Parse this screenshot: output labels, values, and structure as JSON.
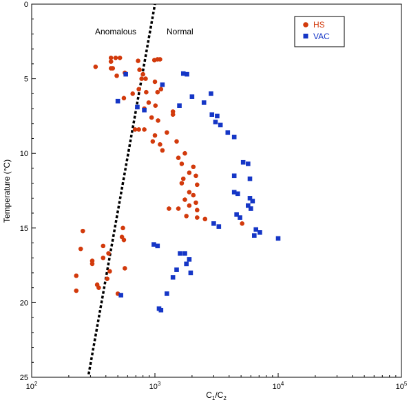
{
  "chart_data": {
    "type": "scatter",
    "title": "",
    "xlabel": "C1/C2",
    "xlabel_main": "C",
    "xlabel_sub1": "1",
    "xlabel_mid": "/C",
    "xlabel_sub2": "2",
    "ylabel": "Temperature (°C)",
    "x_scale": "log",
    "xlim": [
      100,
      100000
    ],
    "ylim": [
      0,
      25
    ],
    "y_inverted": true,
    "x_tick_base": "10",
    "x_ticks": [
      {
        "value": 100,
        "exp": "2"
      },
      {
        "value": 1000,
        "exp": "3"
      },
      {
        "value": 10000,
        "exp": "4"
      },
      {
        "value": 100000,
        "exp": "5"
      }
    ],
    "y_ticks": [
      "0",
      "5",
      "10",
      "15",
      "20",
      "25"
    ],
    "grid": false,
    "legend_position": "top-right",
    "annotations": [
      "Anomalous",
      "Normal"
    ],
    "trend_line": {
      "style": "dotted",
      "color": "#000000",
      "points": [
        [
          290,
          24.8
        ],
        [
          1000,
          0
        ]
      ]
    },
    "series": [
      {
        "name": "HS",
        "color": "#d23a0c",
        "marker": "circle",
        "points": [
          [
            330,
            4.2
          ],
          [
            440,
            3.6
          ],
          [
            440,
            3.85
          ],
          [
            480,
            3.6
          ],
          [
            520,
            3.6
          ],
          [
            440,
            4.3
          ],
          [
            455,
            4.3
          ],
          [
            490,
            4.8
          ],
          [
            570,
            4.6
          ],
          [
            730,
            3.8
          ],
          [
            750,
            4.4
          ],
          [
            800,
            4.7
          ],
          [
            990,
            3.75
          ],
          [
            1050,
            3.7
          ],
          [
            1100,
            3.7
          ],
          [
            780,
            5.0
          ],
          [
            840,
            5.0
          ],
          [
            1000,
            5.2
          ],
          [
            660,
            6.0
          ],
          [
            560,
            6.3
          ],
          [
            740,
            5.7
          ],
          [
            850,
            5.9
          ],
          [
            1050,
            5.9
          ],
          [
            1120,
            5.7
          ],
          [
            890,
            6.6
          ],
          [
            1010,
            6.8
          ],
          [
            820,
            7.0
          ],
          [
            1400,
            7.2
          ],
          [
            1400,
            7.4
          ],
          [
            940,
            7.6
          ],
          [
            1060,
            7.8
          ],
          [
            690,
            8.4
          ],
          [
            740,
            8.4
          ],
          [
            820,
            8.4
          ],
          [
            1250,
            8.6
          ],
          [
            1000,
            8.8
          ],
          [
            960,
            9.2
          ],
          [
            1500,
            9.2
          ],
          [
            1100,
            9.4
          ],
          [
            1150,
            9.8
          ],
          [
            1750,
            10.0
          ],
          [
            1550,
            10.3
          ],
          [
            1650,
            10.7
          ],
          [
            2050,
            10.9
          ],
          [
            1900,
            11.3
          ],
          [
            2150,
            11.5
          ],
          [
            1700,
            11.7
          ],
          [
            1650,
            12.0
          ],
          [
            2200,
            12.1
          ],
          [
            1900,
            12.6
          ],
          [
            2050,
            12.8
          ],
          [
            1750,
            13.1
          ],
          [
            2150,
            13.3
          ],
          [
            1300,
            13.7
          ],
          [
            1550,
            13.7
          ],
          [
            1900,
            13.5
          ],
          [
            2200,
            13.8
          ],
          [
            1800,
            14.2
          ],
          [
            2200,
            14.3
          ],
          [
            2550,
            14.4
          ],
          [
            5100,
            14.7
          ],
          [
            550,
            15.0
          ],
          [
            260,
            15.2
          ],
          [
            540,
            15.6
          ],
          [
            560,
            15.8
          ],
          [
            380,
            16.2
          ],
          [
            250,
            16.4
          ],
          [
            420,
            16.7
          ],
          [
            380,
            17.0
          ],
          [
            310,
            17.2
          ],
          [
            310,
            17.4
          ],
          [
            570,
            17.7
          ],
          [
            430,
            17.9
          ],
          [
            230,
            18.2
          ],
          [
            410,
            18.4
          ],
          [
            340,
            18.8
          ],
          [
            350,
            19.0
          ],
          [
            230,
            19.2
          ],
          [
            500,
            19.4
          ]
        ]
      },
      {
        "name": "VAC",
        "color": "#1536c6",
        "marker": "square",
        "points": [
          [
            580,
            4.7
          ],
          [
            1700,
            4.65
          ],
          [
            1820,
            4.7
          ],
          [
            1150,
            5.4
          ],
          [
            500,
            6.5
          ],
          [
            2000,
            6.2
          ],
          [
            2500,
            6.6
          ],
          [
            1580,
            6.8
          ],
          [
            2850,
            6.0
          ],
          [
            720,
            6.9
          ],
          [
            820,
            7.1
          ],
          [
            2900,
            7.4
          ],
          [
            3200,
            7.5
          ],
          [
            3100,
            7.9
          ],
          [
            3400,
            8.1
          ],
          [
            3900,
            8.6
          ],
          [
            4400,
            8.9
          ],
          [
            5200,
            10.6
          ],
          [
            5700,
            10.7
          ],
          [
            4400,
            11.5
          ],
          [
            5900,
            11.7
          ],
          [
            4400,
            12.6
          ],
          [
            4700,
            12.7
          ],
          [
            5900,
            13.0
          ],
          [
            6200,
            13.2
          ],
          [
            5700,
            13.5
          ],
          [
            6000,
            13.7
          ],
          [
            4600,
            14.1
          ],
          [
            4900,
            14.3
          ],
          [
            3000,
            14.7
          ],
          [
            3300,
            14.9
          ],
          [
            6600,
            15.1
          ],
          [
            7100,
            15.3
          ],
          [
            6400,
            15.5
          ],
          [
            10000,
            15.7
          ],
          [
            980,
            16.1
          ],
          [
            1050,
            16.2
          ],
          [
            1600,
            16.7
          ],
          [
            1750,
            16.7
          ],
          [
            1900,
            17.1
          ],
          [
            1800,
            17.4
          ],
          [
            1500,
            17.8
          ],
          [
            1950,
            18.0
          ],
          [
            1400,
            18.3
          ],
          [
            530,
            19.5
          ],
          [
            1250,
            19.4
          ],
          [
            1080,
            20.4
          ],
          [
            1120,
            20.5
          ]
        ]
      }
    ]
  }
}
